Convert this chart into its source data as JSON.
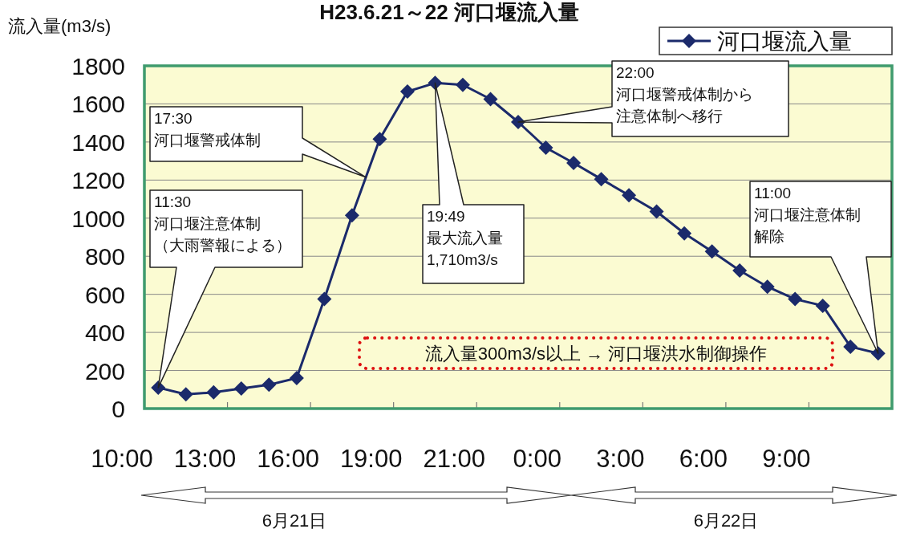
{
  "chart_data": {
    "type": "line",
    "title": "H23.6.21～22 河口堰流入量",
    "ylabel": "流入量(m3/s)",
    "categories": [
      null,
      null,
      null,
      null,
      null,
      null,
      null,
      null,
      null,
      null,
      null,
      null,
      null,
      null,
      null,
      null,
      null,
      null,
      null,
      null,
      null,
      null,
      null,
      null,
      null,
      null,
      null
    ],
    "series": [
      {
        "name": "河口堰流入量",
        "color": "#1b2a6b",
        "values": [
          110,
          75,
          85,
          105,
          125,
          160,
          575,
          1015,
          1415,
          1665,
          1710,
          1700,
          1625,
          1505,
          1370,
          1290,
          1205,
          1120,
          1035,
          920,
          825,
          725,
          640,
          575,
          540,
          325,
          290
        ]
      }
    ],
    "ylim": [
      0,
      1800
    ],
    "yticks": [
      0,
      200,
      400,
      600,
      800,
      1000,
      1200,
      1400,
      1600,
      1800
    ],
    "grid": "y",
    "marker": "diamond",
    "legend": "top right",
    "annotations": [
      "11:30\n河口堰注意体制（大雨警報による）",
      "17:30\n河口堰警戒体制",
      "19:49\n最大流入量\n1,710m3/s",
      "22:00\n河口堰警戒体制から注意体制へ移行",
      "11:00\n河口堰注意体制解除",
      "流入量300m3/s以上 → 河口堰洪水制御操作",
      "10:00",
      "13:00",
      "16:00",
      "19:00",
      "21:00",
      "0:00",
      "3:00",
      "6:00",
      "9:00",
      "6月21日",
      "6月22日"
    ]
  }
}
